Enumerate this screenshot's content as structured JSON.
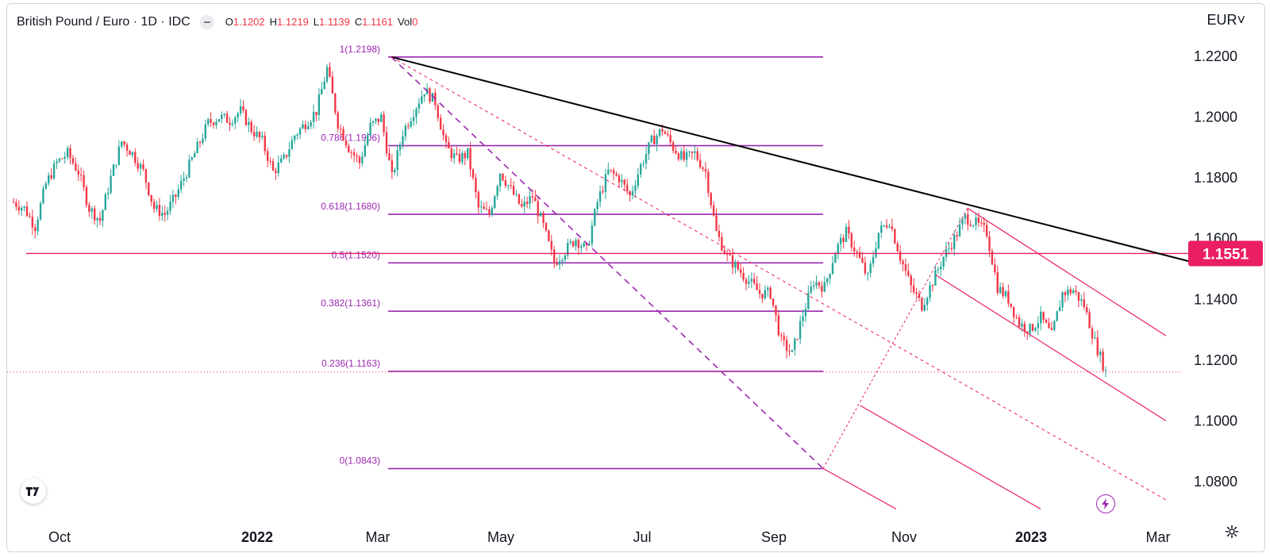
{
  "header": {
    "symbol": "British Pound / Euro · 1D · IDC",
    "ohlc": [
      {
        "k": "O",
        "v": "1.1202"
      },
      {
        "k": "H",
        "v": "1.1219"
      },
      {
        "k": "L",
        "v": "1.1139"
      },
      {
        "k": "C",
        "v": "1.1161"
      },
      {
        "k": "Vol",
        "v": "0"
      }
    ],
    "currency": "EUR"
  },
  "price_axis": {
    "ticks": [
      "1.2200",
      "1.2000",
      "1.1800",
      "1.1600",
      "1.1400",
      "1.1200",
      "1.1000",
      "1.0800"
    ],
    "current_price": "1.1551",
    "current_price_color": "#e91e63"
  },
  "time_axis": {
    "ticks": [
      {
        "label": "Oct",
        "bold": false
      },
      {
        "label": "2022",
        "bold": true
      },
      {
        "label": "Mar",
        "bold": false
      },
      {
        "label": "May",
        "bold": false
      },
      {
        "label": "Jul",
        "bold": false
      },
      {
        "label": "Sep",
        "bold": false
      },
      {
        "label": "Nov",
        "bold": false
      },
      {
        "label": "2023",
        "bold": true
      },
      {
        "label": "Mar",
        "bold": false
      }
    ]
  },
  "fib_levels": [
    {
      "label": "1(1.2198)",
      "price": 1.2198
    },
    {
      "label": "0.786(1.1906)",
      "price": 1.1906
    },
    {
      "label": "0.618(1.1680)",
      "price": 1.168
    },
    {
      "label": "0.5(1.1520)",
      "price": 1.152
    },
    {
      "label": "0.382(1.1361)",
      "price": 1.1361
    },
    {
      "label": "0.236(1.1163)",
      "price": 1.1163
    },
    {
      "label": "0(1.0843)",
      "price": 1.0843
    }
  ],
  "colors": {
    "up": "#26a69a",
    "down": "#f23645",
    "fib": "#9c27b0",
    "trendline": "#000000",
    "channel": "#e91e63"
  },
  "chart_data": {
    "type": "candlestick",
    "title": "British Pound / Euro · 1D · IDC",
    "ylim": [
      1.08,
      1.22
    ],
    "x_ticks": [
      "Oct",
      "2022",
      "Mar",
      "May",
      "Jul",
      "Sep",
      "Nov",
      "2023",
      "Mar"
    ],
    "y_ticks": [
      1.08,
      1.1,
      1.12,
      1.14,
      1.16,
      1.18,
      1.2,
      1.22
    ],
    "last_close": 1.1161,
    "horizontal_level": 1.1551,
    "fib_retracement": {
      "high": 1.2198,
      "low": 1.0843
    },
    "series_close_waypoints": [
      1.172,
      1.17,
      1.164,
      1.178,
      1.185,
      1.188,
      1.182,
      1.17,
      1.166,
      1.18,
      1.192,
      1.188,
      1.182,
      1.17,
      1.168,
      1.174,
      1.182,
      1.19,
      1.198,
      1.2,
      1.199,
      1.202,
      1.196,
      1.192,
      1.182,
      1.186,
      1.194,
      1.198,
      1.202,
      1.216,
      1.198,
      1.19,
      1.185,
      1.197,
      1.2,
      1.18,
      1.195,
      1.202,
      1.209,
      1.205,
      1.19,
      1.186,
      1.188,
      1.17,
      1.168,
      1.182,
      1.176,
      1.17,
      1.174,
      1.164,
      1.152,
      1.156,
      1.16,
      1.156,
      1.172,
      1.182,
      1.18,
      1.174,
      1.184,
      1.192,
      1.196,
      1.19,
      1.186,
      1.188,
      1.182,
      1.162,
      1.154,
      1.15,
      1.146,
      1.142,
      1.142,
      1.126,
      1.122,
      1.135,
      1.146,
      1.144,
      1.156,
      1.162,
      1.155,
      1.147,
      1.162,
      1.166,
      1.154,
      1.144,
      1.138,
      1.146,
      1.154,
      1.16,
      1.167,
      1.165,
      1.162,
      1.144,
      1.14,
      1.132,
      1.13,
      1.134,
      1.128,
      1.142,
      1.143,
      1.138,
      1.126,
      1.1161
    ]
  }
}
